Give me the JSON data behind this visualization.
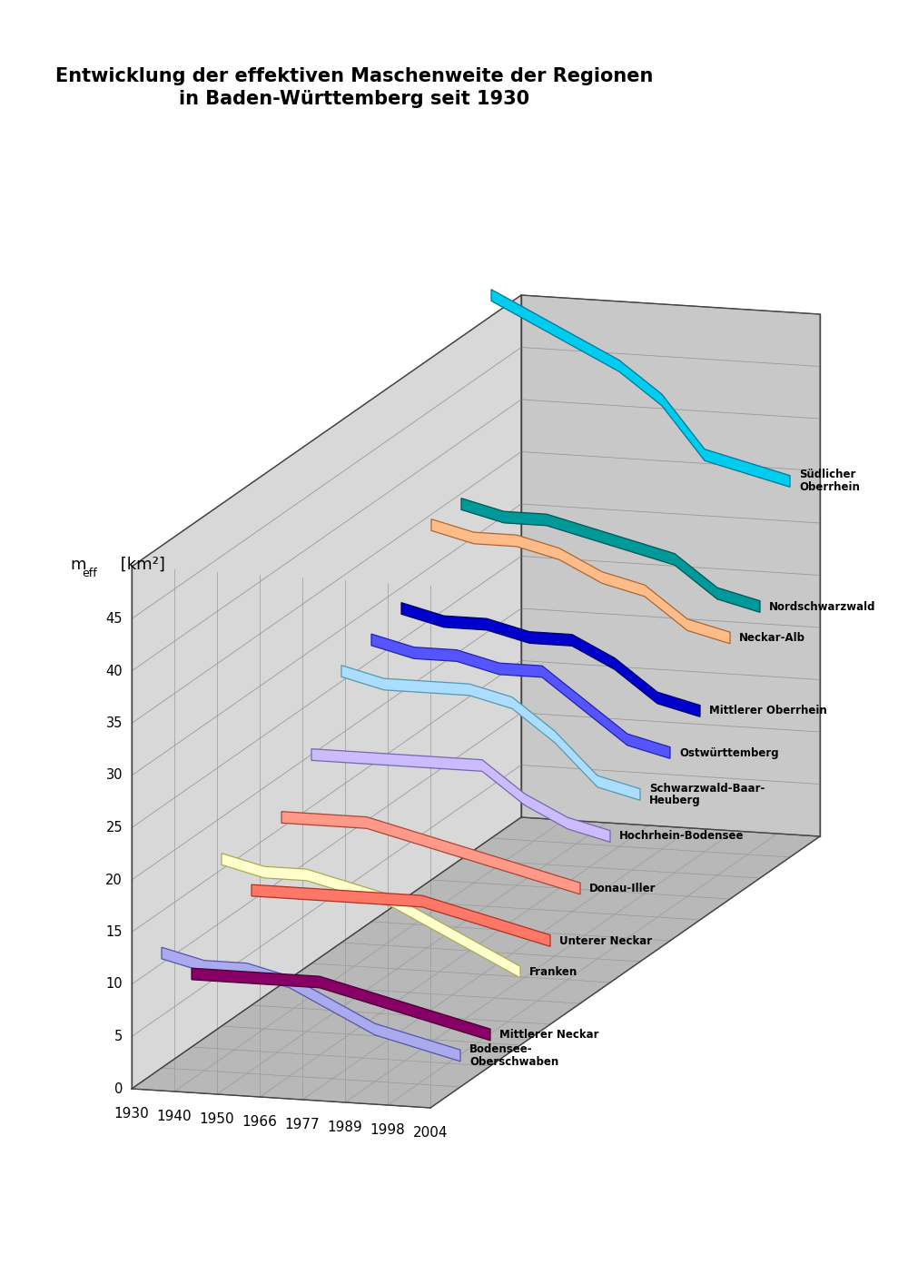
{
  "title": "Entwicklung der effektiven Maschenweite der Regionen\nin Baden-Württemberg seit 1930",
  "years": [
    1930,
    1940,
    1950,
    1966,
    1977,
    1989,
    1998,
    2004
  ],
  "regions": [
    {
      "name": "Südlicher\nOberrhein",
      "color": "#00CCEE",
      "edge_color": "#007799",
      "depth": 12,
      "values": [
        52,
        50,
        48,
        46,
        43,
        38,
        37,
        36
      ]
    },
    {
      "name": "Nordschwarzwald",
      "color": "#009999",
      "edge_color": "#005555",
      "depth": 11,
      "values": [
        34,
        33,
        33,
        32,
        31,
        30,
        27,
        26
      ]
    },
    {
      "name": "Neckar-Alb",
      "color": "#FFBB88",
      "edge_color": "#AA6633",
      "depth": 10,
      "values": [
        34,
        33,
        33,
        32,
        30,
        29,
        26,
        25
      ]
    },
    {
      "name": "Mittlerer Oberrhein",
      "color": "#0000CC",
      "edge_color": "#000066",
      "depth": 9,
      "values": [
        28,
        27,
        27,
        26,
        26,
        24,
        21,
        20
      ]
    },
    {
      "name": "Ostwürttemberg",
      "color": "#5555FF",
      "edge_color": "#2222AA",
      "depth": 8,
      "values": [
        27,
        26,
        26,
        25,
        25,
        22,
        19,
        18
      ]
    },
    {
      "name": "Schwarzwald-Baar-\nHeuberg",
      "color": "#AADDFF",
      "edge_color": "#5599AA",
      "depth": 7,
      "values": [
        26,
        25,
        25,
        25,
        24,
        21,
        17,
        16
      ]
    },
    {
      "name": "Hochrhein-Bodensee",
      "color": "#CCBBFF",
      "edge_color": "#7766AA",
      "depth": 6,
      "values": [
        20,
        20,
        20,
        20,
        20,
        17,
        15,
        14
      ]
    },
    {
      "name": "Donau-Iller",
      "color": "#FF9988",
      "edge_color": "#AA4433",
      "depth": 5,
      "values": [
        16,
        16,
        16,
        15,
        14,
        13,
        12,
        11
      ]
    },
    {
      "name": "Unterer Neckar",
      "color": "#FF7766",
      "edge_color": "#AA3322",
      "depth": 4,
      "values": [
        11,
        11,
        11,
        11,
        11,
        10,
        9,
        8
      ]
    },
    {
      "name": "Franken",
      "color": "#FFFFCC",
      "edge_color": "#AAAA55",
      "depth": 3,
      "values": [
        16,
        15,
        15,
        14,
        13,
        11,
        9,
        7
      ]
    },
    {
      "name": "Mittlerer Neckar",
      "color": "#880066",
      "edge_color": "#440033",
      "depth": 2,
      "values": [
        7,
        7,
        7,
        7,
        6,
        5,
        4,
        3
      ]
    },
    {
      "name": "Bodensee-\nOberschwaben",
      "color": "#AAAAEE",
      "edge_color": "#5555AA",
      "depth": 1,
      "values": [
        11,
        10,
        10,
        9,
        7,
        5,
        4,
        3
      ]
    }
  ],
  "ylim": [
    0,
    50
  ],
  "yticks": [
    0,
    5,
    10,
    15,
    20,
    25,
    30,
    35,
    40,
    45
  ],
  "background_color": "#ffffff"
}
